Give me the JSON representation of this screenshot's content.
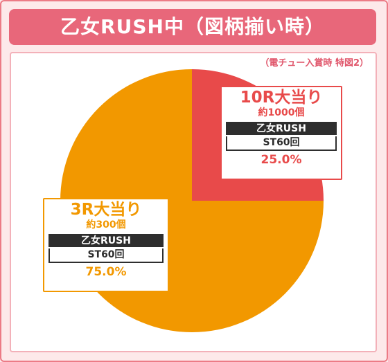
{
  "header": {
    "title": "乙女RUSH中（図柄揃い時）"
  },
  "note": "（電チュー入賞時 特図2）",
  "colors": {
    "red": "#e84a4a",
    "orange": "#f29800",
    "header": "#e8677a"
  },
  "chart_data": {
    "type": "pie",
    "slices": [
      {
        "label": "10R大当り",
        "sub": "約1000個",
        "mode": "乙女RUSH",
        "st": "ST60回",
        "percent": "25.0%",
        "value": 25.0,
        "color": "#e84a4a"
      },
      {
        "label": "3R大当り",
        "sub": "約300個",
        "mode": "乙女RUSH",
        "st": "ST60回",
        "percent": "75.0%",
        "value": 75.0,
        "color": "#f29800"
      }
    ]
  }
}
